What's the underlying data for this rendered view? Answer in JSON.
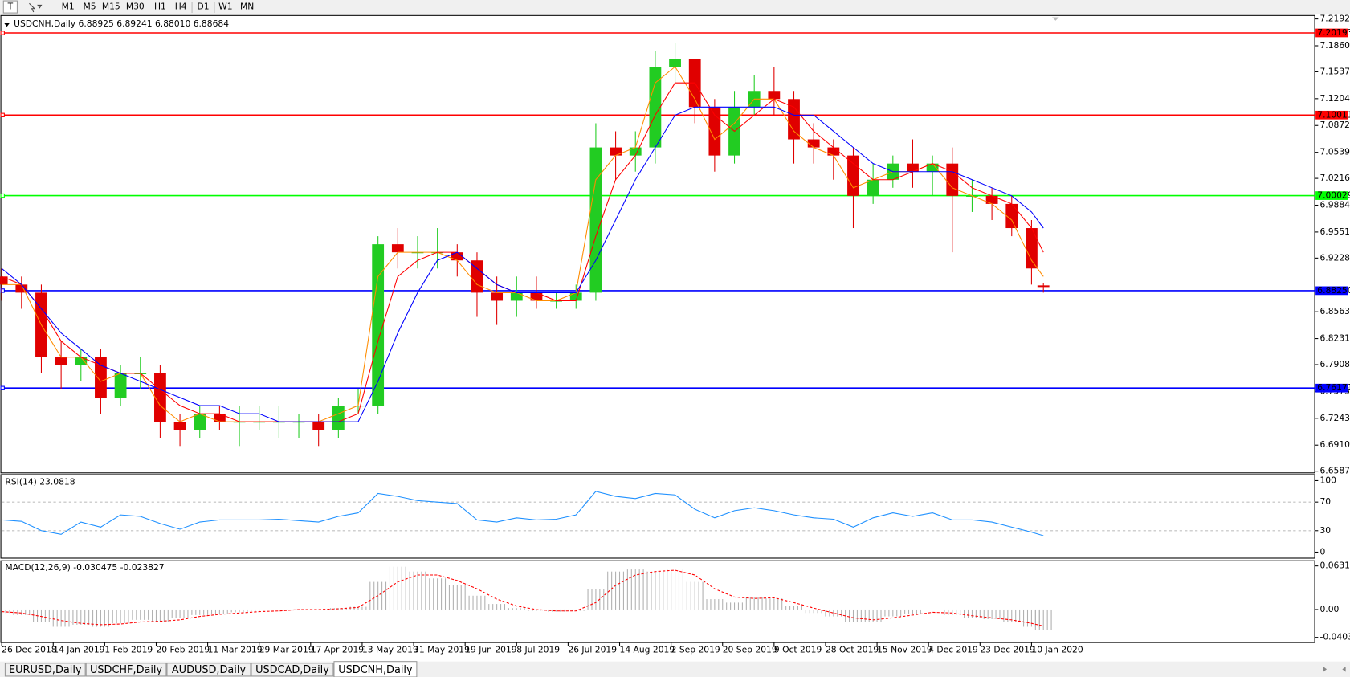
{
  "toolbar": {
    "timeframes": [
      "M1",
      "M5",
      "M15",
      "M30",
      "H1",
      "H4",
      "D1",
      "W1",
      "MN"
    ]
  },
  "tabs": [
    "EURUSD,Daily",
    "USDCHF,Daily",
    "AUDUSD,Daily",
    "USDCAD,Daily",
    "USDCNH,Daily"
  ],
  "chart_data": [
    {
      "type": "candlestick",
      "title": "USDCNH,Daily  6.88925 6.89241 6.88010 6.88684",
      "up_color": "#22cc22",
      "down_color": "#e00000",
      "x": [
        0,
        5,
        10,
        15,
        20,
        25,
        30,
        35,
        40,
        45,
        50,
        55,
        60,
        65,
        70,
        75,
        80,
        85,
        90,
        95,
        100,
        105,
        110,
        115,
        120,
        125,
        130,
        135,
        140,
        145,
        150,
        155,
        160,
        165,
        170,
        175,
        180,
        185,
        190,
        195,
        200,
        205,
        210,
        215,
        220,
        225,
        230,
        235,
        240,
        245,
        250,
        255,
        260,
        263
      ],
      "open": [
        6.9,
        6.89,
        6.88,
        6.8,
        6.79,
        6.8,
        6.75,
        6.78,
        6.78,
        6.72,
        6.71,
        6.73,
        6.72,
        6.72,
        6.72,
        6.72,
        6.72,
        6.71,
        6.74,
        6.74,
        6.94,
        6.93,
        6.93,
        6.93,
        6.92,
        6.88,
        6.87,
        6.88,
        6.87,
        6.87,
        6.88,
        7.06,
        7.05,
        7.06,
        7.16,
        7.17,
        7.11,
        7.05,
        7.11,
        7.13,
        7.12,
        7.07,
        7.06,
        7.05,
        7.0,
        7.02,
        7.04,
        7.03,
        7.04,
        7.0,
        7.0,
        6.99,
        6.96,
        6.889
      ],
      "high": [
        6.91,
        6.9,
        6.89,
        6.82,
        6.81,
        6.81,
        6.79,
        6.8,
        6.79,
        6.73,
        6.74,
        6.74,
        6.74,
        6.74,
        6.74,
        6.73,
        6.73,
        6.75,
        6.76,
        6.95,
        6.96,
        6.95,
        6.96,
        6.94,
        6.93,
        6.9,
        6.9,
        6.9,
        6.88,
        6.89,
        7.09,
        7.08,
        7.08,
        7.18,
        7.19,
        7.17,
        7.12,
        7.13,
        7.15,
        7.16,
        7.13,
        7.09,
        7.07,
        7.06,
        7.04,
        7.05,
        7.07,
        7.05,
        7.06,
        7.02,
        7.01,
        7.0,
        6.97,
        6.892
      ],
      "low": [
        6.87,
        6.86,
        6.78,
        6.76,
        6.77,
        6.73,
        6.74,
        6.76,
        6.7,
        6.69,
        6.7,
        6.71,
        6.69,
        6.71,
        6.7,
        6.7,
        6.69,
        6.7,
        6.73,
        6.73,
        6.91,
        6.91,
        6.91,
        6.9,
        6.85,
        6.84,
        6.85,
        6.86,
        6.86,
        6.86,
        6.87,
        7.02,
        7.03,
        7.04,
        7.14,
        7.09,
        7.03,
        7.04,
        7.1,
        7.1,
        7.04,
        7.04,
        7.02,
        6.96,
        6.99,
        7.01,
        7.01,
        7.0,
        6.93,
        6.98,
        6.97,
        6.95,
        6.89,
        6.88
      ],
      "close": [
        6.89,
        6.88,
        6.8,
        6.79,
        6.8,
        6.75,
        6.78,
        6.78,
        6.72,
        6.71,
        6.73,
        6.72,
        6.72,
        6.72,
        6.72,
        6.72,
        6.71,
        6.74,
        6.74,
        6.94,
        6.93,
        6.93,
        6.93,
        6.92,
        6.88,
        6.87,
        6.88,
        6.87,
        6.87,
        6.88,
        7.06,
        7.05,
        7.06,
        7.16,
        7.17,
        7.11,
        7.05,
        7.11,
        7.13,
        7.12,
        7.07,
        7.06,
        7.05,
        7.0,
        7.02,
        7.04,
        7.03,
        7.04,
        7.0,
        7.0,
        6.99,
        6.96,
        6.91,
        6.887
      ],
      "series": [
        {
          "color": "#ff8c00",
          "values": [
            6.89,
            6.89,
            6.84,
            6.8,
            6.8,
            6.77,
            6.78,
            6.78,
            6.74,
            6.72,
            6.73,
            6.72,
            6.72,
            6.72,
            6.72,
            6.72,
            6.72,
            6.73,
            6.74,
            6.9,
            6.93,
            6.93,
            6.93,
            6.92,
            6.89,
            6.88,
            6.88,
            6.87,
            6.87,
            6.88,
            7.02,
            7.05,
            7.06,
            7.14,
            7.16,
            7.12,
            7.07,
            7.09,
            7.12,
            7.12,
            7.08,
            7.06,
            7.05,
            7.01,
            7.02,
            7.03,
            7.03,
            7.04,
            7.01,
            7.0,
            6.99,
            6.97,
            6.92,
            6.9
          ]
        },
        {
          "color": "#ff0000",
          "values": [
            6.9,
            6.89,
            6.86,
            6.82,
            6.8,
            6.79,
            6.78,
            6.78,
            6.76,
            6.74,
            6.73,
            6.73,
            6.72,
            6.72,
            6.72,
            6.72,
            6.72,
            6.72,
            6.73,
            6.82,
            6.9,
            6.92,
            6.93,
            6.93,
            6.91,
            6.89,
            6.88,
            6.88,
            6.87,
            6.87,
            6.95,
            7.02,
            7.05,
            7.1,
            7.14,
            7.14,
            7.1,
            7.08,
            7.1,
            7.12,
            7.11,
            7.08,
            7.06,
            7.04,
            7.02,
            7.02,
            7.03,
            7.04,
            7.03,
            7.01,
            7.0,
            6.99,
            6.96,
            6.93
          ]
        },
        {
          "color": "#0000ff",
          "values": [
            6.91,
            6.89,
            6.86,
            6.83,
            6.81,
            6.79,
            6.78,
            6.77,
            6.76,
            6.75,
            6.74,
            6.74,
            6.73,
            6.73,
            6.72,
            6.72,
            6.72,
            6.72,
            6.72,
            6.77,
            6.83,
            6.88,
            6.92,
            6.93,
            6.91,
            6.89,
            6.88,
            6.88,
            6.88,
            6.88,
            6.92,
            6.97,
            7.02,
            7.06,
            7.1,
            7.11,
            7.11,
            7.11,
            7.11,
            7.11,
            7.1,
            7.1,
            7.08,
            7.06,
            7.04,
            7.03,
            7.03,
            7.03,
            7.03,
            7.02,
            7.01,
            7.0,
            6.98,
            6.96
          ]
        }
      ],
      "hlines": [
        {
          "value": 7.20193,
          "color": "#ff0000"
        },
        {
          "value": 7.10011,
          "color": "#ff0000"
        },
        {
          "value": 7.00029,
          "color": "#00ff00"
        },
        {
          "value": 6.8825,
          "label": "6.88250",
          "color": "#0000ff"
        },
        {
          "value": 6.76171,
          "color": "#0000ff"
        }
      ],
      "xlim": [
        0,
        331.5
      ],
      "ylim": [
        6.65875,
        7.21925
      ],
      "yticks": [
        7.21925,
        {
          "value": 7.186,
          "label": "7.18600"
        },
        {
          "value": 7.1537,
          "label": "7.15370"
        },
        7.12045,
        {
          "value": 7.0872,
          "label": "7.08720"
        },
        7.05395,
        7.02165,
        {
          "value": 6.9884,
          "label": "6.98840"
        },
        6.95515,
        6.92285,
        6.85635,
        {
          "value": 6.8231,
          "label": "6.82310"
        },
        {
          "value": 6.7908,
          "label": "6.79080"
        },
        6.75755,
        {
          "value": 6.7243,
          "label": "6.72430"
        },
        6.69105,
        6.65875
      ],
      "xticks": [
        {
          "value": 0,
          "label": "26 Dec 2018"
        },
        {
          "value": 13,
          "label": "14 Jan 2019"
        },
        {
          "value": 26,
          "label": "1 Feb 2019"
        },
        {
          "value": 39,
          "label": "20 Feb 2019"
        },
        {
          "value": 52,
          "label": "11 Mar 2019"
        },
        {
          "value": 65,
          "label": "29 Mar 2019"
        },
        {
          "value": 78,
          "label": "17 Apr 2019"
        },
        {
          "value": 91,
          "label": "13 May 2019"
        },
        {
          "value": 104,
          "label": "31 May 2019"
        },
        {
          "value": 117,
          "label": "19 Jun 2019"
        },
        {
          "value": 130,
          "label": "8 Jul 2019"
        },
        {
          "value": 143,
          "label": "26 Jul 2019"
        },
        {
          "value": 156,
          "label": "14 Aug 2019"
        },
        {
          "value": 169,
          "label": "2 Sep 2019"
        },
        {
          "value": 182,
          "label": "20 Sep 2019"
        },
        {
          "value": 195,
          "label": "9 Oct 2019"
        },
        {
          "value": 208,
          "label": "28 Oct 2019"
        },
        {
          "value": 221,
          "label": "15 Nov 2019"
        },
        {
          "value": 234,
          "label": "4 Dec 2019"
        },
        {
          "value": 247,
          "label": "23 Dec 2019"
        },
        {
          "value": 260,
          "label": "10 Jan 2020"
        }
      ]
    },
    {
      "type": "line",
      "title": "RSI(14) 23.0818",
      "x": [
        0,
        5,
        10,
        15,
        20,
        25,
        30,
        35,
        40,
        45,
        50,
        55,
        60,
        65,
        70,
        75,
        80,
        85,
        90,
        95,
        100,
        105,
        110,
        115,
        120,
        125,
        130,
        135,
        140,
        145,
        150,
        155,
        160,
        165,
        170,
        175,
        180,
        185,
        190,
        195,
        200,
        205,
        210,
        215,
        220,
        225,
        230,
        235,
        240,
        245,
        250,
        255,
        260,
        263
      ],
      "series": [
        {
          "color": "#1e90ff",
          "style": "solid",
          "values": [
            45,
            43,
            30,
            25,
            42,
            35,
            52,
            50,
            40,
            32,
            42,
            45,
            45,
            45,
            46,
            44,
            42,
            50,
            55,
            82,
            78,
            72,
            70,
            68,
            45,
            42,
            48,
            45,
            46,
            52,
            85,
            78,
            75,
            82,
            80,
            60,
            48,
            58,
            62,
            58,
            52,
            48,
            46,
            35,
            48,
            55,
            50,
            55,
            45,
            45,
            42,
            35,
            28,
            23
          ]
        }
      ],
      "levels": [
        30,
        70
      ],
      "xlim": [
        0,
        331.5
      ],
      "ylim": [
        0,
        100
      ],
      "yticks": [
        0,
        30,
        70,
        100
      ]
    },
    {
      "type": "macd",
      "title": "MACD(12,26,9) -0.030475 -0.023827",
      "x": [
        0,
        5,
        10,
        15,
        20,
        25,
        30,
        35,
        40,
        45,
        50,
        55,
        60,
        65,
        70,
        75,
        80,
        85,
        90,
        95,
        100,
        105,
        110,
        115,
        120,
        125,
        130,
        135,
        140,
        145,
        150,
        155,
        160,
        165,
        170,
        175,
        180,
        185,
        190,
        195,
        200,
        205,
        210,
        215,
        220,
        225,
        230,
        235,
        240,
        245,
        250,
        255,
        260,
        263
      ],
      "series": [
        {
          "color": "#b0b0b0",
          "style": "histogram",
          "values": [
            -0.005,
            -0.008,
            -0.018,
            -0.025,
            -0.022,
            -0.025,
            -0.02,
            -0.015,
            -0.018,
            -0.012,
            -0.008,
            -0.006,
            -0.004,
            -0.002,
            -0.001,
            0.0,
            0.0,
            0.002,
            0.004,
            0.04,
            0.062,
            0.055,
            0.045,
            0.035,
            0.02,
            0.008,
            0.002,
            -0.002,
            -0.003,
            -0.002,
            0.03,
            0.055,
            0.058,
            0.055,
            0.058,
            0.04,
            0.015,
            0.01,
            0.018,
            0.016,
            0.005,
            -0.005,
            -0.01,
            -0.018,
            -0.018,
            -0.01,
            -0.006,
            0.0,
            -0.008,
            -0.012,
            -0.014,
            -0.018,
            -0.025,
            -0.03
          ]
        },
        {
          "color": "#ff0000",
          "style": "dashed",
          "values": [
            -0.003,
            -0.005,
            -0.01,
            -0.016,
            -0.02,
            -0.022,
            -0.021,
            -0.018,
            -0.017,
            -0.015,
            -0.01,
            -0.007,
            -0.005,
            -0.003,
            -0.002,
            0.0,
            0.0,
            0.001,
            0.003,
            0.02,
            0.04,
            0.05,
            0.05,
            0.042,
            0.03,
            0.015,
            0.005,
            0.0,
            -0.002,
            -0.002,
            0.01,
            0.035,
            0.05,
            0.055,
            0.057,
            0.05,
            0.03,
            0.018,
            0.016,
            0.017,
            0.01,
            0.002,
            -0.005,
            -0.012,
            -0.015,
            -0.012,
            -0.008,
            -0.004,
            -0.005,
            -0.009,
            -0.012,
            -0.015,
            -0.02,
            -0.024
          ]
        }
      ],
      "xlim": [
        0,
        331.5
      ],
      "ylim": [
        -0.040355,
        0.063184
      ],
      "yticks": [
        0.063184,
        {
          "value": 0,
          "label": "0.00"
        },
        -0.040355
      ]
    }
  ]
}
